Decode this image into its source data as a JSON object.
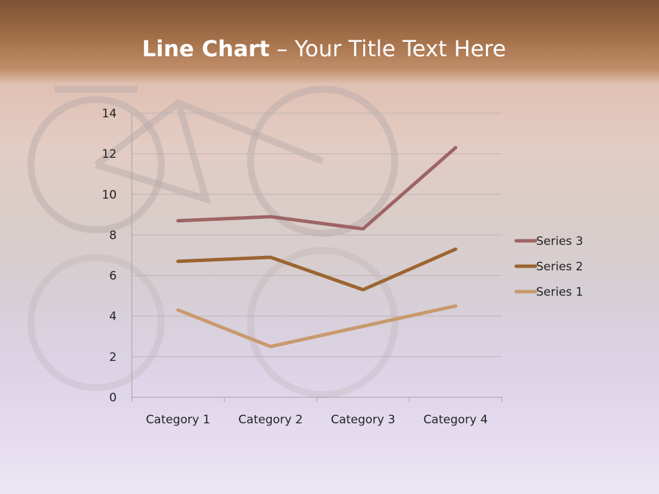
{
  "slide": {
    "title_bold": "Line Chart",
    "title_rest": " – Your Title Text Here"
  },
  "chart_data": {
    "type": "line",
    "stacked": true,
    "categories": [
      "Category 1",
      "Category 2",
      "Category 3",
      "Category 4"
    ],
    "series": [
      {
        "name": "Series 1",
        "values": [
          4.3,
          2.5,
          3.5,
          4.5
        ],
        "color": "#c9996e"
      },
      {
        "name": "Series 2",
        "values": [
          2.4,
          4.4,
          1.8,
          2.8
        ],
        "color": "#9c6530"
      },
      {
        "name": "Series 3",
        "values": [
          2,
          2,
          3,
          5
        ],
        "color": "#9e6464"
      }
    ],
    "yticks": [
      "0",
      "2",
      "4",
      "6",
      "8",
      "10",
      "12",
      "14"
    ],
    "ylim": [
      0,
      14
    ],
    "grid": true,
    "legend": "right"
  }
}
